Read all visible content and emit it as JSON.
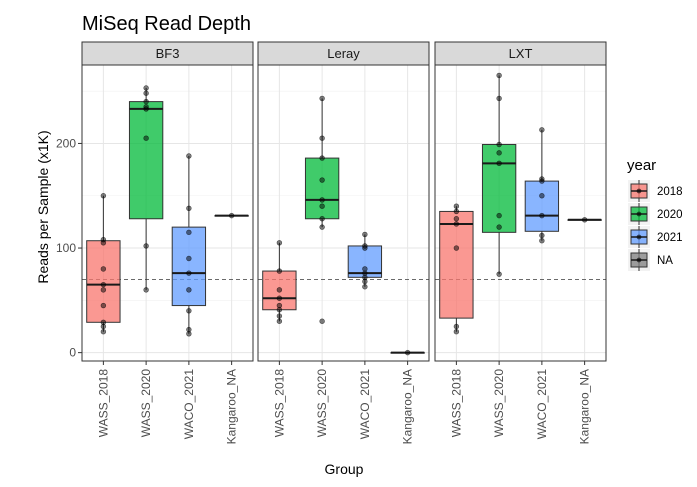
{
  "chart_data": {
    "type": "boxplot",
    "title": "MiSeq Read Depth",
    "xlabel": "Group",
    "ylabel": "Reads per Sample (x1K)",
    "ylim": [
      -8,
      275
    ],
    "y_ticks": [
      0,
      100,
      200
    ],
    "reference_line": 70,
    "categories": [
      "WASS_2018",
      "WASS_2020",
      "WACO_2021",
      "Kangaroo_NA"
    ],
    "category_years": [
      "2018",
      "2020",
      "2021",
      "NA"
    ],
    "grid": true,
    "legend_position": "right",
    "legend": {
      "title": "year",
      "entries": [
        {
          "label": "2018",
          "color": "#f8766d"
        },
        {
          "label": "2020",
          "color": "#00ba38"
        },
        {
          "label": "2021",
          "color": "#619cff"
        },
        {
          "label": "NA",
          "color": "#7f7f7f"
        }
      ]
    },
    "panels": [
      {
        "name": "BF3",
        "boxes": [
          {
            "q1": 29,
            "median": 65,
            "q3": 107,
            "lower": 20,
            "upper": 150,
            "points": [
              20,
              25,
              29,
              45,
              60,
              65,
              80,
              105,
              108,
              150
            ]
          },
          {
            "q1": 128,
            "median": 233,
            "q3": 240,
            "lower": 60,
            "upper": 253,
            "points": [
              60,
              102,
              205,
              233,
              235,
              240,
              248,
              253
            ]
          },
          {
            "q1": 45,
            "median": 76,
            "q3": 120,
            "lower": 18,
            "upper": 188,
            "points": [
              18,
              22,
              40,
              60,
              76,
              90,
              115,
              138,
              188
            ]
          },
          {
            "q1": 131,
            "median": 131,
            "q3": 131,
            "lower": 131,
            "upper": 131,
            "points": [
              131
            ]
          }
        ]
      },
      {
        "name": "Leray",
        "boxes": [
          {
            "q1": 41,
            "median": 52,
            "q3": 78,
            "lower": 30,
            "upper": 105,
            "points": [
              30,
              35,
              41,
              45,
              52,
              60,
              78,
              105
            ]
          },
          {
            "q1": 128,
            "median": 146,
            "q3": 186,
            "lower": 120,
            "upper": 243,
            "points": [
              30,
              120,
              128,
              140,
              146,
              165,
              186,
              205,
              243
            ]
          },
          {
            "q1": 72,
            "median": 76,
            "q3": 102,
            "lower": 63,
            "upper": 113,
            "points": [
              63,
              68,
              72,
              76,
              80,
              100,
              102,
              113
            ]
          },
          {
            "q1": 0,
            "median": 0,
            "q3": 0,
            "lower": 0,
            "upper": 0,
            "points": [
              0
            ]
          }
        ]
      },
      {
        "name": "LXT",
        "boxes": [
          {
            "q1": 33,
            "median": 123,
            "q3": 135,
            "lower": 20,
            "upper": 140,
            "points": [
              20,
              25,
              100,
              123,
              128,
              135,
              140
            ]
          },
          {
            "q1": 115,
            "median": 181,
            "q3": 199,
            "lower": 75,
            "upper": 265,
            "points": [
              75,
              120,
              131,
              181,
              191,
              199,
              243,
              265
            ]
          },
          {
            "q1": 116,
            "median": 131,
            "q3": 164,
            "lower": 107,
            "upper": 213,
            "points": [
              107,
              112,
              131,
              150,
              164,
              166,
              213
            ]
          },
          {
            "q1": 127,
            "median": 127,
            "q3": 127,
            "lower": 127,
            "upper": 127,
            "points": [
              127
            ]
          }
        ]
      }
    ]
  }
}
